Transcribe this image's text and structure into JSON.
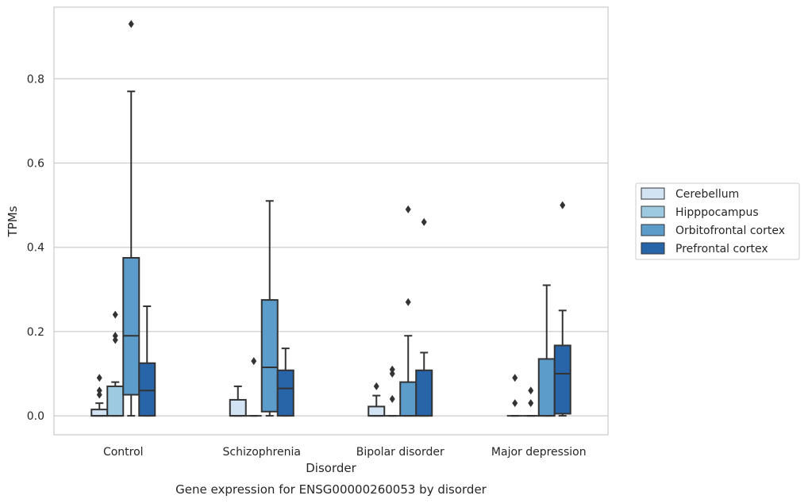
{
  "chart_data": {
    "type": "box",
    "title": "",
    "caption": "Gene expression for ENSG00000260053 by disorder",
    "xlabel": "Disorder",
    "ylabel": "TPMs",
    "ylim": [
      -0.045,
      0.97
    ],
    "yticks": [
      0.0,
      0.2,
      0.4,
      0.6,
      0.8
    ],
    "ytick_labels": [
      "0.0",
      "0.2",
      "0.4",
      "0.6",
      "0.8"
    ],
    "grid": "horizontal",
    "legend_position": "right",
    "categories": [
      "Control",
      "Schizophrenia",
      "Bipolar disorder",
      "Major depression"
    ],
    "series": [
      {
        "name": "Cerebellum",
        "color": "#d2e3f3",
        "boxes": [
          {
            "min": 0.0,
            "q1": 0.0,
            "median": 0.0,
            "q3": 0.015,
            "max": 0.03,
            "outliers": [
              0.05,
              0.06,
              0.09
            ]
          },
          {
            "min": 0.0,
            "q1": 0.0,
            "median": 0.0,
            "q3": 0.038,
            "max": 0.07,
            "outliers": []
          },
          {
            "min": 0.0,
            "q1": 0.0,
            "median": 0.0,
            "q3": 0.022,
            "max": 0.048,
            "outliers": [
              0.07
            ]
          },
          {
            "min": 0.0,
            "q1": 0.0,
            "median": 0.0,
            "q3": 0.0,
            "max": 0.0,
            "outliers": [
              0.03,
              0.09
            ]
          }
        ]
      },
      {
        "name": "Hipppocampus",
        "color": "#9dc9e1",
        "boxes": [
          {
            "min": 0.0,
            "q1": 0.0,
            "median": 0.0,
            "q3": 0.07,
            "max": 0.08,
            "outliers": [
              0.18,
              0.19,
              0.24
            ]
          },
          {
            "min": 0.0,
            "q1": 0.0,
            "median": 0.0,
            "q3": 0.0,
            "max": 0.0,
            "outliers": [
              0.13
            ]
          },
          {
            "min": 0.0,
            "q1": 0.0,
            "median": 0.0,
            "q3": 0.0,
            "max": 0.0,
            "outliers": [
              0.04,
              0.1,
              0.11
            ]
          },
          {
            "min": 0.0,
            "q1": 0.0,
            "median": 0.0,
            "q3": 0.0,
            "max": 0.0,
            "outliers": [
              0.03,
              0.06
            ]
          }
        ]
      },
      {
        "name": "Orbitofrontal cortex",
        "color": "#5b9ccb",
        "boxes": [
          {
            "min": 0.0,
            "q1": 0.05,
            "median": 0.19,
            "q3": 0.375,
            "max": 0.77,
            "outliers": [
              0.93
            ]
          },
          {
            "min": 0.0,
            "q1": 0.01,
            "median": 0.115,
            "q3": 0.275,
            "max": 0.51,
            "outliers": []
          },
          {
            "min": 0.0,
            "q1": 0.0,
            "median": 0.0,
            "q3": 0.08,
            "max": 0.19,
            "outliers": [
              0.27,
              0.49
            ]
          },
          {
            "min": 0.0,
            "q1": 0.0,
            "median": 0.0,
            "q3": 0.135,
            "max": 0.31,
            "outliers": []
          }
        ]
      },
      {
        "name": "Prefrontal cortex",
        "color": "#2865a8",
        "boxes": [
          {
            "min": 0.0,
            "q1": 0.0,
            "median": 0.06,
            "q3": 0.125,
            "max": 0.26,
            "outliers": []
          },
          {
            "min": 0.0,
            "q1": 0.0,
            "median": 0.065,
            "q3": 0.108,
            "max": 0.16,
            "outliers": []
          },
          {
            "min": 0.0,
            "q1": 0.0,
            "median": 0.0,
            "q3": 0.108,
            "max": 0.15,
            "outliers": [
              0.46
            ]
          },
          {
            "min": 0.0,
            "q1": 0.005,
            "median": 0.1,
            "q3": 0.167,
            "max": 0.25,
            "outliers": [
              0.5
            ]
          }
        ]
      }
    ]
  },
  "colors": {
    "edge": "#333333",
    "grid": "#cccccc",
    "frame": "#cccccc",
    "text": "#262626"
  }
}
